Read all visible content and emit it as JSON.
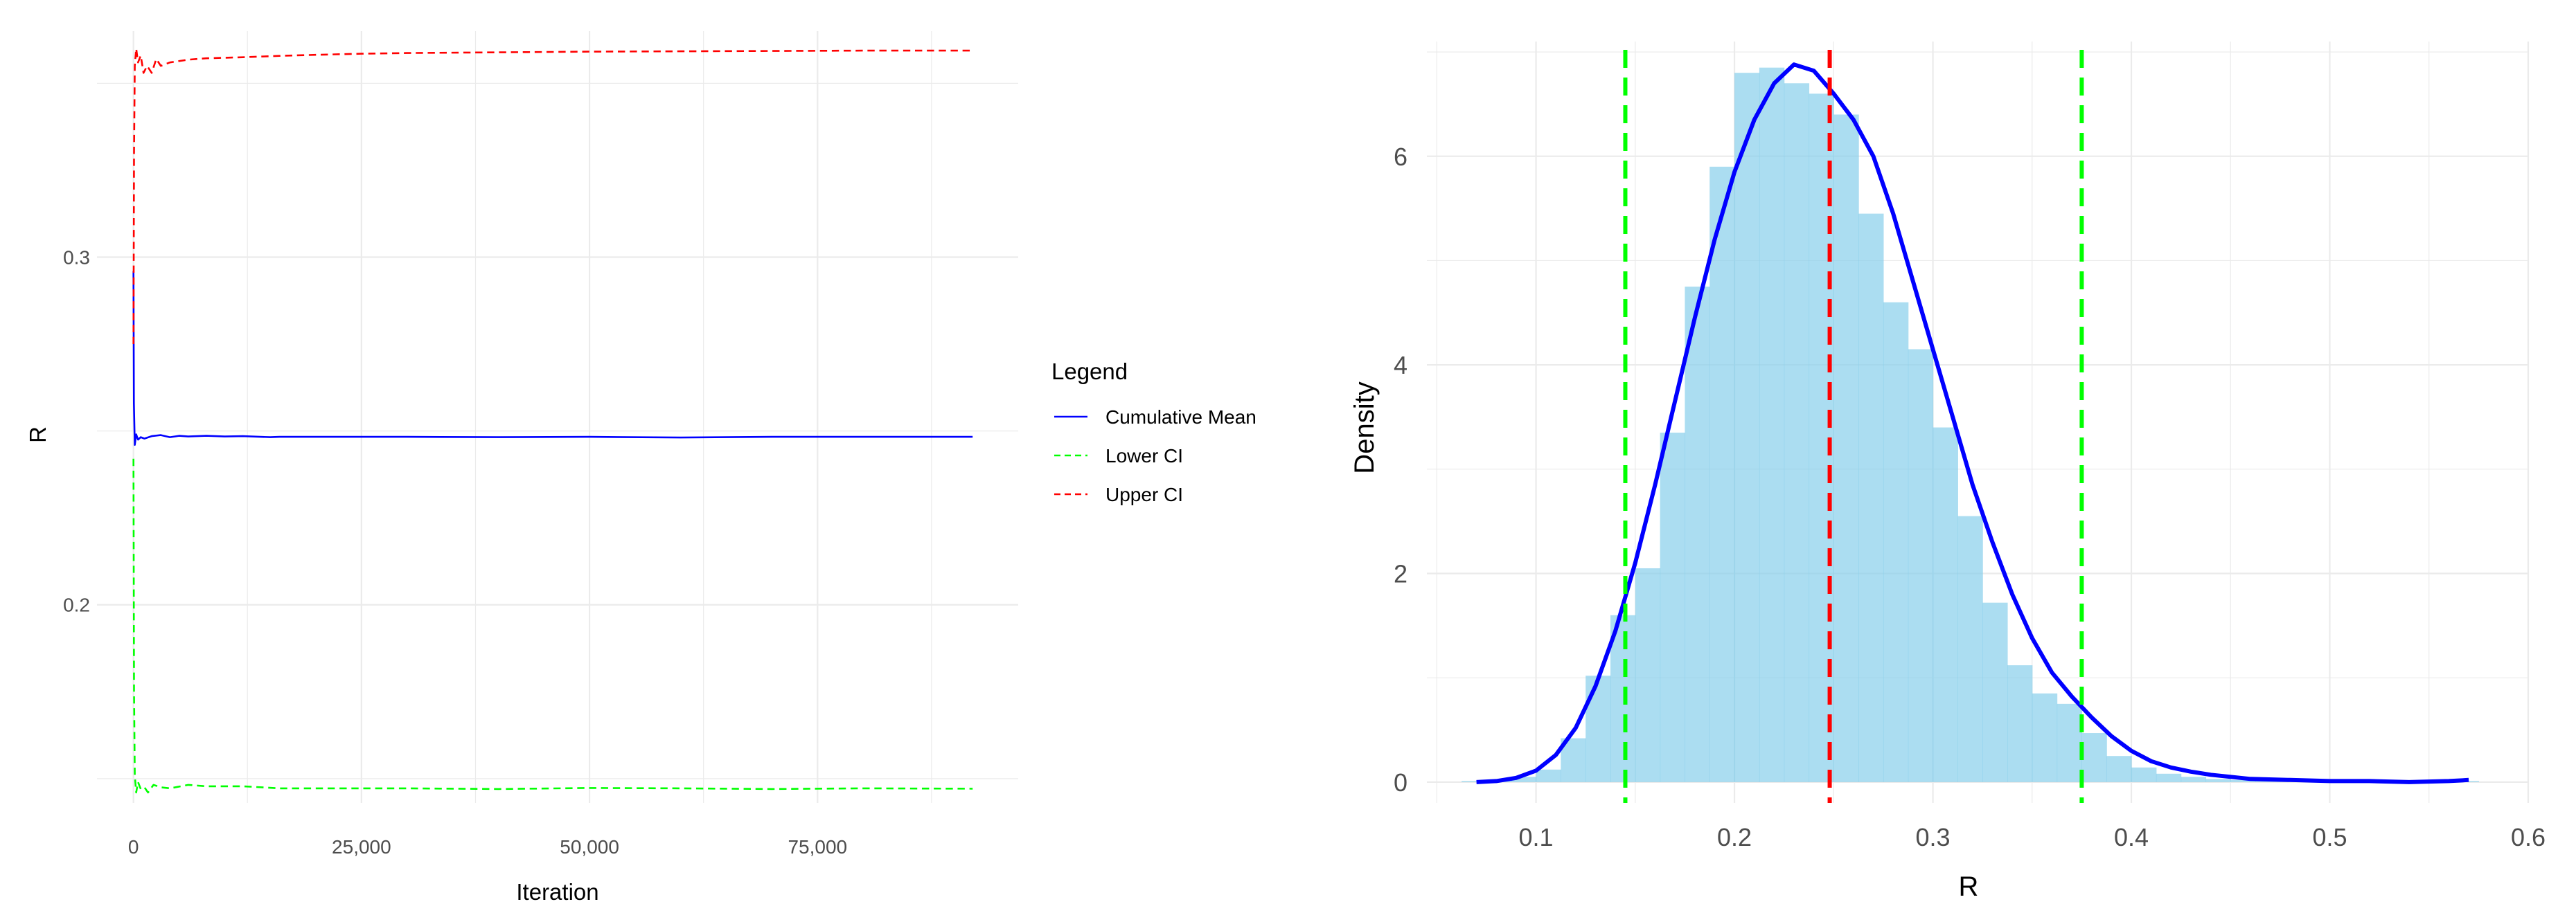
{
  "chart_data": [
    {
      "type": "line",
      "title": "",
      "xlabel": "Iteration",
      "ylabel": "R",
      "xlim": [
        -4000,
        97000
      ],
      "ylim": [
        0.143,
        0.365
      ],
      "grid": true,
      "legend_placement": "right",
      "legend_title": "Legend",
      "x_ticks": [
        {
          "value": 0,
          "label": "0"
        },
        {
          "value": 25000,
          "label": "25,000"
        },
        {
          "value": 50000,
          "label": "50,000"
        },
        {
          "value": 75000,
          "label": "75,000"
        }
      ],
      "y_ticks": [
        {
          "value": 0.2,
          "label": "0.2"
        },
        {
          "value": 0.3,
          "label": "0.3"
        }
      ],
      "series": [
        {
          "name": "Cumulative Mean",
          "color": "#0000ff",
          "dash": "solid",
          "x": [
            1,
            50,
            150,
            300,
            500,
            800,
            1200,
            2000,
            3000,
            4000,
            5000,
            6000,
            8000,
            10000,
            12000,
            15000,
            16000,
            20000,
            30000,
            40000,
            50000,
            60000,
            70000,
            80000,
            90000,
            92000
          ],
          "y": [
            0.296,
            0.258,
            0.246,
            0.249,
            0.2475,
            0.2482,
            0.2478,
            0.2485,
            0.2488,
            0.2482,
            0.2486,
            0.2484,
            0.2486,
            0.2484,
            0.2485,
            0.2482,
            0.2483,
            0.2483,
            0.2483,
            0.2482,
            0.2483,
            0.2481,
            0.2483,
            0.2483,
            0.2483,
            0.2483
          ]
        },
        {
          "name": "Lower CI",
          "color": "#00ff00",
          "dash": "dashed",
          "x": [
            1,
            60,
            150,
            300,
            500,
            800,
            1200,
            1600,
            2200,
            3000,
            4000,
            6000,
            8000,
            12000,
            16000,
            20000,
            30000,
            40000,
            50000,
            60000,
            70000,
            80000,
            92000
          ],
          "y": [
            0.242,
            0.175,
            0.151,
            0.146,
            0.149,
            0.147,
            0.1475,
            0.146,
            0.1482,
            0.1475,
            0.1472,
            0.1482,
            0.1478,
            0.1478,
            0.1472,
            0.1472,
            0.1472,
            0.147,
            0.1473,
            0.1472,
            0.147,
            0.1472,
            0.1471
          ]
        },
        {
          "name": "Upper CI",
          "color": "#ff0000",
          "dash": "dashed",
          "x": [
            1,
            60,
            150,
            300,
            500,
            800,
            1100,
            1500,
            2000,
            2500,
            3000,
            4000,
            6000,
            8000,
            12000,
            16000,
            20000,
            25000,
            30000,
            40000,
            50000,
            60000,
            70000,
            80000,
            92000
          ],
          "y": [
            0.275,
            0.33,
            0.355,
            0.36,
            0.356,
            0.358,
            0.353,
            0.355,
            0.353,
            0.357,
            0.355,
            0.356,
            0.3568,
            0.3572,
            0.3575,
            0.3579,
            0.3582,
            0.3585,
            0.3587,
            0.3589,
            0.3591,
            0.3592,
            0.3593,
            0.3594,
            0.3594
          ]
        }
      ]
    },
    {
      "type": "bar",
      "title": "",
      "xlabel": "R",
      "ylabel": "Density",
      "xlim": [
        0.045,
        0.6
      ],
      "ylim": [
        -0.2,
        7.1
      ],
      "grid": true,
      "x_ticks": [
        {
          "value": 0.1,
          "label": "0.1"
        },
        {
          "value": 0.2,
          "label": "0.2"
        },
        {
          "value": 0.3,
          "label": "0.3"
        },
        {
          "value": 0.4,
          "label": "0.4"
        },
        {
          "value": 0.5,
          "label": "0.5"
        },
        {
          "value": 0.6,
          "label": "0.6"
        }
      ],
      "y_ticks": [
        {
          "value": 0,
          "label": "0"
        },
        {
          "value": 2,
          "label": "2"
        },
        {
          "value": 4,
          "label": "4"
        },
        {
          "value": 6,
          "label": "6"
        }
      ],
      "histogram": {
        "color": "#87ceeb",
        "bin_width": 0.0125,
        "bin_starts": [
          0.0625,
          0.075,
          0.0875,
          0.1,
          0.1125,
          0.125,
          0.1375,
          0.15,
          0.1625,
          0.175,
          0.1875,
          0.2,
          0.2125,
          0.225,
          0.2375,
          0.25,
          0.2625,
          0.275,
          0.2875,
          0.3,
          0.3125,
          0.325,
          0.3375,
          0.35,
          0.3625,
          0.375,
          0.3875,
          0.4,
          0.4125,
          0.425,
          0.4375,
          0.45,
          0.4625,
          0.475,
          0.4875,
          0.5,
          0.5125,
          0.525,
          0.5375,
          0.55,
          0.5625
        ],
        "densities": [
          0.01,
          0.02,
          0.05,
          0.12,
          0.42,
          1.02,
          1.6,
          2.05,
          3.35,
          4.75,
          5.9,
          6.8,
          6.85,
          6.7,
          6.6,
          6.4,
          5.45,
          4.6,
          4.15,
          3.4,
          2.55,
          1.72,
          1.12,
          0.85,
          0.75,
          0.47,
          0.25,
          0.14,
          0.08,
          0.05,
          0.03,
          0.02,
          0.01,
          0.01,
          0.01,
          0.01,
          0.01,
          0.01,
          0.01,
          0.01,
          0.01
        ]
      },
      "density_curve": {
        "color": "#0000ff",
        "x": [
          0.07,
          0.08,
          0.09,
          0.1,
          0.11,
          0.12,
          0.13,
          0.14,
          0.15,
          0.16,
          0.17,
          0.18,
          0.19,
          0.2,
          0.21,
          0.22,
          0.23,
          0.24,
          0.25,
          0.26,
          0.27,
          0.28,
          0.29,
          0.3,
          0.31,
          0.32,
          0.33,
          0.34,
          0.35,
          0.36,
          0.37,
          0.38,
          0.39,
          0.4,
          0.41,
          0.42,
          0.43,
          0.44,
          0.45,
          0.46,
          0.48,
          0.5,
          0.52,
          0.54,
          0.56,
          0.57
        ],
        "y": [
          0.0,
          0.01,
          0.04,
          0.11,
          0.26,
          0.52,
          0.92,
          1.45,
          2.1,
          2.85,
          3.65,
          4.45,
          5.2,
          5.85,
          6.35,
          6.7,
          6.88,
          6.82,
          6.6,
          6.35,
          6.0,
          5.45,
          4.8,
          4.15,
          3.5,
          2.85,
          2.3,
          1.8,
          1.38,
          1.05,
          0.82,
          0.62,
          0.44,
          0.3,
          0.2,
          0.14,
          0.1,
          0.07,
          0.05,
          0.03,
          0.02,
          0.01,
          0.01,
          0.0,
          0.01,
          0.02
        ]
      },
      "reference_lines": [
        {
          "value": 0.145,
          "color": "#00ff00",
          "dash": "dashed"
        },
        {
          "value": 0.248,
          "color": "#ff0000",
          "dash": "dashed"
        },
        {
          "value": 0.375,
          "color": "#00ff00",
          "dash": "dashed"
        }
      ]
    }
  ]
}
